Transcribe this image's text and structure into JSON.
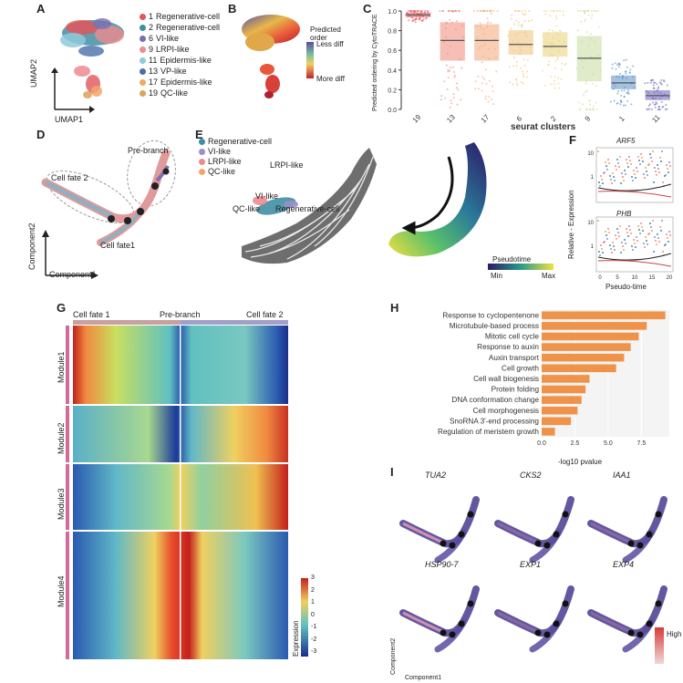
{
  "panels": {
    "A": "A",
    "B": "B",
    "C": "C",
    "D": "D",
    "E": "E",
    "F": "F",
    "G": "G",
    "H": "H",
    "I": "I"
  },
  "panel_a": {
    "xlabel": "UMAP1",
    "ylabel": "UMAP2",
    "legend": [
      {
        "num": "1",
        "name": "Regenerative-cell",
        "color": "#e0565b"
      },
      {
        "num": "2",
        "name": "Regenerative-cell",
        "color": "#3f8fa3"
      },
      {
        "num": "6",
        "name": "VI-like",
        "color": "#7a6fb0"
      },
      {
        "num": "9",
        "name": "LRPI-like",
        "color": "#ef8a8d"
      },
      {
        "num": "11",
        "name": "Epidermis-like",
        "color": "#8fc9dc"
      },
      {
        "num": "13",
        "name": "VP-like",
        "color": "#4a6fa8"
      },
      {
        "num": "17",
        "name": "Epidermis-like",
        "color": "#f2a66a"
      },
      {
        "num": "19",
        "name": "QC-like",
        "color": "#d9a55a"
      }
    ]
  },
  "panel_b": {
    "legend_title": "Predicted order",
    "less": "Less diff",
    "more": "More diff"
  },
  "panel_c": {
    "ylabel": "Predicted ordering by CytoTRACE",
    "xlabel": "seurat clusters",
    "chart_data": {
      "type": "box",
      "categories": [
        "19",
        "13",
        "17",
        "6",
        "2",
        "9",
        "1",
        "11"
      ],
      "medians": [
        0.96,
        0.7,
        0.7,
        0.66,
        0.64,
        0.52,
        0.27,
        0.14
      ],
      "q1": [
        0.94,
        0.5,
        0.5,
        0.56,
        0.54,
        0.29,
        0.21,
        0.1
      ],
      "q3": [
        0.98,
        0.88,
        0.86,
        0.8,
        0.78,
        0.74,
        0.34,
        0.19
      ],
      "colors": [
        "#e0565b",
        "#ef8a7a",
        "#f4a77a",
        "#f2c27a",
        "#e8d27a",
        "#c8dca0",
        "#5a8fc8",
        "#6a62b8"
      ],
      "yticks": [
        "0.0",
        "0.2",
        "0.4",
        "0.6",
        "0.8",
        "1.0"
      ],
      "ylim": [
        0,
        1
      ]
    }
  },
  "panel_d": {
    "pre_branch": "Pre-branch",
    "fate2": "Cell fate 2",
    "fate1": "Cell fate1",
    "ylabel": "Component2",
    "xlabel": "Component1"
  },
  "panel_e": {
    "legend": [
      {
        "name": "Regenerative-cell",
        "color": "#3f8fa3"
      },
      {
        "name": "VI-like",
        "color": "#9a8fc8"
      },
      {
        "name": "LRPI-like",
        "color": "#ef8a8d"
      },
      {
        "name": "QC-like",
        "color": "#f2a66a"
      }
    ],
    "lbl_lrpi": "LRPI-like",
    "lbl_vi": "VI-like",
    "lbl_qc": "QC-like",
    "lbl_regen": "Regenerative-cell",
    "pseudotime": "Pseudotime",
    "min": "Min",
    "max": "Max"
  },
  "panel_f": {
    "gene1": "ARF5",
    "gene2": "PHB",
    "ylabel": "Relative - Expression",
    "xlabel": "Pseudo-time",
    "xticks": [
      "0",
      "5",
      "10",
      "15",
      "20"
    ],
    "yticks1": [
      "10",
      "1"
    ],
    "yticks2": [
      "10",
      "1"
    ]
  },
  "panel_g": {
    "top_labels": [
      "Cell fate 1",
      "Pre-branch",
      "Cell fate 2"
    ],
    "modules": [
      "Module1",
      "Module2",
      "Module3",
      "Module4"
    ],
    "legend_title": "Expression",
    "legend_ticks": [
      "3",
      "2",
      "1",
      "0",
      "-1",
      "-2",
      "-3"
    ]
  },
  "panel_h": {
    "xlabel": "-log10 pvalue",
    "chart_data": {
      "type": "bar",
      "orientation": "horizontal",
      "categories": [
        "Response to cyclopentenone",
        "Microtubule-based process",
        "Mitotic cell cycle",
        "Response to auxin",
        "Auxin transport",
        "Cell growth",
        "Cell wall biogenesis",
        "Protein folding",
        "DNA conformation change",
        "Cell morphogenesis",
        "SnoRNA 3'-end processing",
        "Regulation of meristem growth"
      ],
      "values": [
        9.3,
        7.9,
        7.3,
        6.7,
        6.2,
        5.6,
        3.6,
        3.3,
        3.0,
        2.7,
        2.2,
        1.0
      ],
      "xticks": [
        "0.0",
        "2.5",
        "5.0",
        "7.5"
      ],
      "xlim": [
        0,
        9.6
      ],
      "color": "#f0934a"
    }
  },
  "panel_i": {
    "genes": [
      "TUA2",
      "CKS2",
      "IAA1",
      "HSP90-7",
      "EXP1",
      "EXP4"
    ],
    "legend_high": "High",
    "ylabel": "Component2",
    "xlabel": "Component1"
  }
}
